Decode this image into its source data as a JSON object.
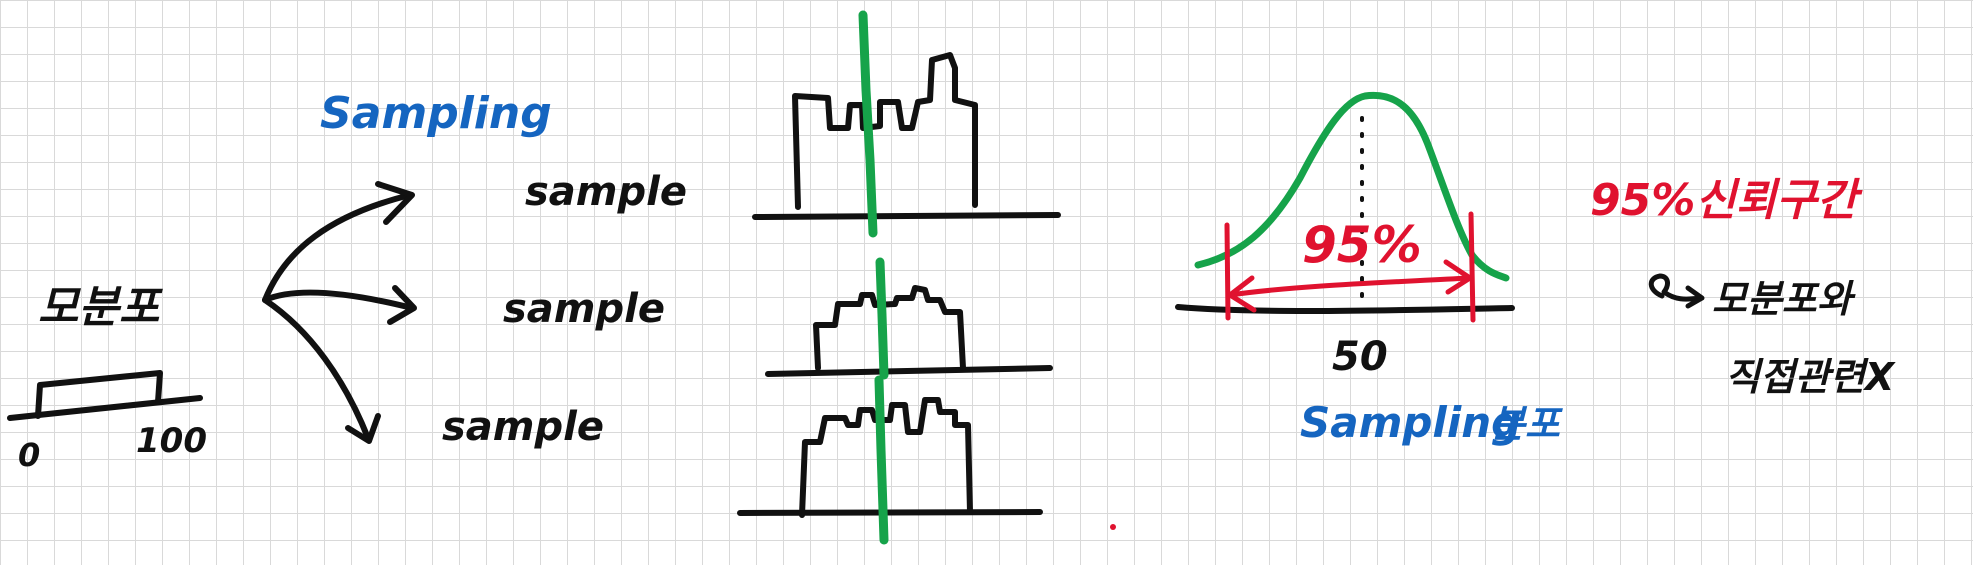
{
  "colors": {
    "ink": "#111111",
    "blue": "#1565c0",
    "green": "#16a34a",
    "red": "#e0122f",
    "grid": "#d9d9d9"
  },
  "population": {
    "label": "모분포",
    "axis_min": "0",
    "axis_max": "100"
  },
  "sampling_label": "Sampling",
  "samples": [
    "sample",
    "sample",
    "sample"
  ],
  "sampling_distribution": {
    "percent_label": "95%",
    "center_label": "50",
    "caption_word": "Sampling",
    "caption_korean": "분포"
  },
  "confidence_note": {
    "title": "95%신뢰구간",
    "line1_arrow_text": "모분포와",
    "line2": "직접관련X"
  }
}
